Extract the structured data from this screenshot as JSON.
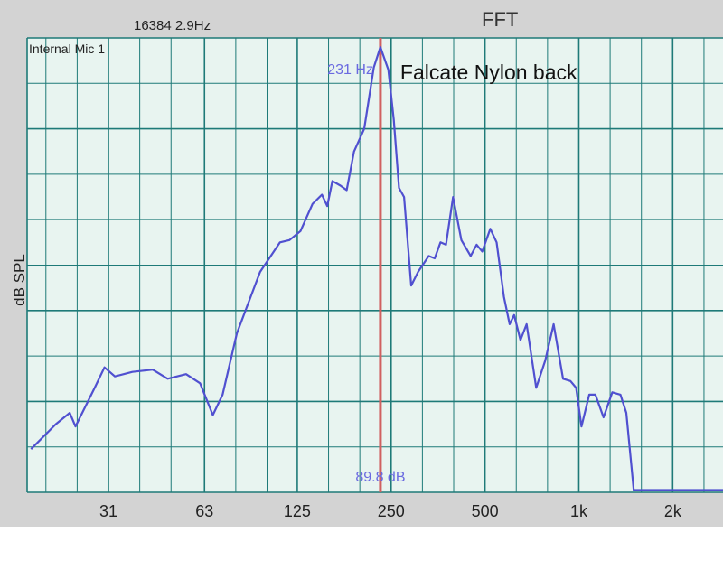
{
  "header": {
    "fft_info": "16384  2.9Hz",
    "title": "FFT"
  },
  "overlay": {
    "input_source": "Internal Mic 1",
    "annotation": "Falcate Nylon back",
    "cursor_freq": "231 Hz",
    "cursor_level": "89.8 dB"
  },
  "colors": {
    "background": "#d3d3d3",
    "plot_area": "#e8f4f0",
    "grid": "#1e7a78",
    "curve": "#5050d0",
    "cursor": "#d06060",
    "cursor_text": "#6a6ae0"
  },
  "chart_data": {
    "type": "line",
    "title": "FFT",
    "ylabel": "dB SPL",
    "xlabel": "",
    "x_scale": "log",
    "x_ticks": [
      "31",
      "63",
      "125",
      "250",
      "500",
      "1k",
      "2k"
    ],
    "x_tick_values": [
      31,
      63,
      125,
      250,
      500,
      1000,
      2000
    ],
    "xlim": [
      17,
      2900
    ],
    "ylim": [
      0,
      10
    ],
    "cursor": {
      "freq": 231,
      "level_db": 89.8
    },
    "series": [
      {
        "values": [
          [
            17.5,
            0.95
          ],
          [
            21,
            1.5
          ],
          [
            23.3,
            1.75
          ],
          [
            24.3,
            1.45
          ],
          [
            28,
            2.3
          ],
          [
            30.1,
            2.75
          ],
          [
            32.5,
            2.55
          ],
          [
            37,
            2.65
          ],
          [
            43,
            2.7
          ],
          [
            48,
            2.5
          ],
          [
            55,
            2.6
          ],
          [
            61,
            2.4
          ],
          [
            67,
            1.7
          ],
          [
            72,
            2.15
          ],
          [
            80,
            3.5
          ],
          [
            95,
            4.85
          ],
          [
            110,
            5.5
          ],
          [
            118,
            5.55
          ],
          [
            128,
            5.75
          ],
          [
            140,
            6.35
          ],
          [
            150,
            6.55
          ],
          [
            156,
            6.3
          ],
          [
            162,
            6.85
          ],
          [
            172,
            6.75
          ],
          [
            180,
            6.65
          ],
          [
            190,
            7.5
          ],
          [
            205,
            8.0
          ],
          [
            220,
            9.35
          ],
          [
            231,
            9.8
          ],
          [
            245,
            9.3
          ],
          [
            255,
            8.2
          ],
          [
            265,
            6.7
          ],
          [
            275,
            6.5
          ],
          [
            290,
            4.55
          ],
          [
            305,
            4.85
          ],
          [
            330,
            5.2
          ],
          [
            345,
            5.15
          ],
          [
            360,
            5.5
          ],
          [
            375,
            5.45
          ],
          [
            395,
            6.5
          ],
          [
            420,
            5.55
          ],
          [
            450,
            5.2
          ],
          [
            470,
            5.45
          ],
          [
            490,
            5.3
          ],
          [
            520,
            5.8
          ],
          [
            545,
            5.5
          ],
          [
            575,
            4.3
          ],
          [
            600,
            3.7
          ],
          [
            620,
            3.9
          ],
          [
            650,
            3.35
          ],
          [
            680,
            3.7
          ],
          [
            730,
            2.3
          ],
          [
            780,
            2.9
          ],
          [
            830,
            3.7
          ],
          [
            890,
            2.5
          ],
          [
            940,
            2.45
          ],
          [
            980,
            2.3
          ],
          [
            1020,
            1.45
          ],
          [
            1080,
            2.15
          ],
          [
            1130,
            2.15
          ],
          [
            1200,
            1.65
          ],
          [
            1280,
            2.2
          ],
          [
            1360,
            2.15
          ],
          [
            1420,
            1.75
          ],
          [
            1500,
            0.05
          ],
          [
            2900,
            0.05
          ]
        ]
      }
    ]
  }
}
